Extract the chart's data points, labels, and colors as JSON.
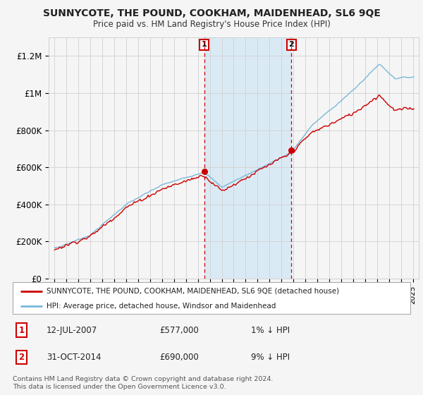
{
  "title": "SUNNYCOTE, THE POUND, COOKHAM, MAIDENHEAD, SL6 9QE",
  "subtitle": "Price paid vs. HM Land Registry's House Price Index (HPI)",
  "legend_line1": "SUNNYCOTE, THE POUND, COOKHAM, MAIDENHEAD, SL6 9QE (detached house)",
  "legend_line2": "HPI: Average price, detached house, Windsor and Maidenhead",
  "footer1": "Contains HM Land Registry data © Crown copyright and database right 2024.",
  "footer2": "This data is licensed under the Open Government Licence v3.0.",
  "annotation1_date": "12-JUL-2007",
  "annotation1_price": "£577,000",
  "annotation1_note": "1% ↓ HPI",
  "annotation2_date": "31-OCT-2014",
  "annotation2_price": "£690,000",
  "annotation2_note": "9% ↓ HPI",
  "sale1_year": 2007.54,
  "sale1_price": 577000,
  "sale2_year": 2014.83,
  "sale2_price": 690000,
  "hpi_color": "#7ab8d9",
  "price_color": "#cc0000",
  "shading_color": "#daeaf5",
  "background_color": "#f5f5f5",
  "ylim_min": 0,
  "ylim_max": 1300000,
  "xlim_min": 1994.5,
  "xlim_max": 2025.5
}
